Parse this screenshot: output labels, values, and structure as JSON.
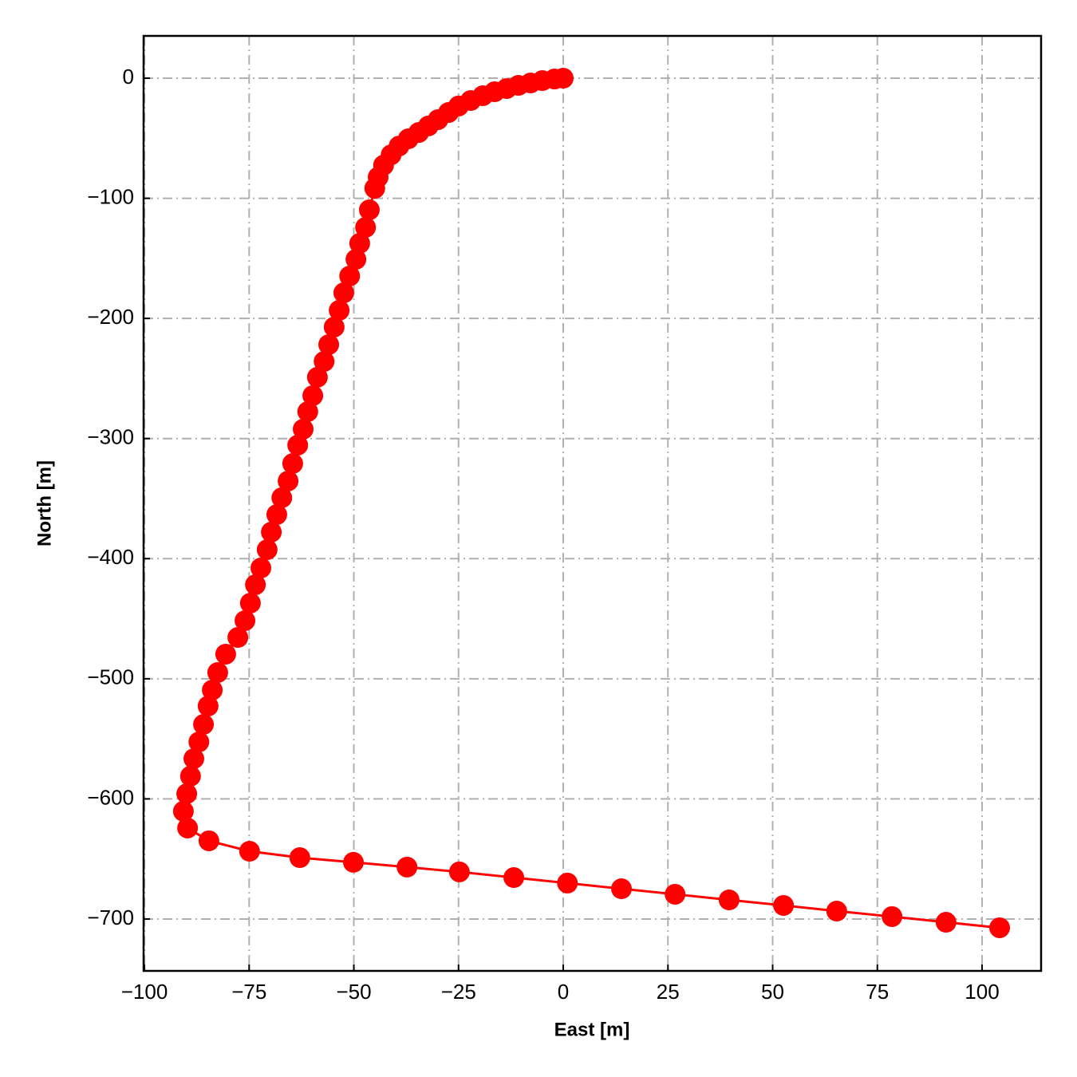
{
  "chart_data": {
    "type": "line",
    "x_label": "East [m]",
    "y_label": "North [m]",
    "x": [
      0,
      -2.1,
      -5,
      -7.8,
      -10.7,
      -13.5,
      -16.4,
      -19.2,
      -22.1,
      -25,
      -27.4,
      -29.9,
      -32.2,
      -34.5,
      -37,
      -39.2,
      -41.1,
      -42.9,
      -44.2,
      -45,
      -46.3,
      -47.2,
      -48.6,
      -49.5,
      -51,
      -52.4,
      -53.5,
      -54.7,
      -56,
      -57.1,
      -58.7,
      -59.8,
      -61,
      -62.1,
      -63.4,
      -64.6,
      -65.7,
      -67.2,
      -68.4,
      -69.7,
      -70.7,
      -72.2,
      -73.5,
      -74.7,
      -76,
      -77.7,
      -80.6,
      -82.5,
      -83.8,
      -84.8,
      -85.9,
      -87,
      -88.2,
      -89,
      -89.9,
      -90.7,
      -89.7,
      -84.6,
      -74.9,
      -62.9,
      -50.1,
      -37.3,
      -24.8,
      -11.8,
      1,
      13.9,
      26.7,
      39.6,
      52.6,
      65.3,
      78.5,
      91.4,
      104.2
    ],
    "series": [
      {
        "color": "#ff0000",
        "values": [
          0,
          -0.7,
          -2,
          -4,
          -6,
          -8.6,
          -11.3,
          -14.6,
          -18.6,
          -23.2,
          -28.6,
          -34.5,
          -39.8,
          -45.2,
          -50.5,
          -56.5,
          -63.8,
          -72.4,
          -82.4,
          -91.7,
          -109.6,
          -124.2,
          -137.5,
          -150.8,
          -164.7,
          -178.7,
          -193.3,
          -207.2,
          -221.8,
          -235.8,
          -249,
          -264.3,
          -277.6,
          -292.2,
          -305.5,
          -320.8,
          -335.4,
          -349.3,
          -363.3,
          -377.9,
          -392.5,
          -407.8,
          -421.7,
          -437,
          -451.6,
          -465.6,
          -479.5,
          -494.8,
          -509.4,
          -522.7,
          -538,
          -552.6,
          -566.5,
          -581.1,
          -595.7,
          -610.3,
          -624.3,
          -634.9,
          -643.6,
          -648.9,
          -652.8,
          -656.8,
          -660.8,
          -665.5,
          -670.1,
          -674.8,
          -679.4,
          -684.1,
          -688.7,
          -693.4,
          -698,
          -702.7,
          -707.3
        ]
      }
    ],
    "xlim": [
      -100.2,
      114.1
    ],
    "ylim": [
      -743.2,
      35.2
    ],
    "xticks": [
      {
        "value": -100,
        "label": "−100"
      },
      {
        "value": -75,
        "label": "−75"
      },
      {
        "value": -50,
        "label": "−50"
      },
      {
        "value": -25,
        "label": "−25"
      },
      0,
      25,
      50,
      75,
      100
    ],
    "yticks": [
      0,
      {
        "value": -100,
        "label": "−100"
      },
      {
        "value": -200,
        "label": "−200"
      },
      {
        "value": -300,
        "label": "−300"
      },
      {
        "value": -400,
        "label": "−400"
      },
      {
        "value": -500,
        "label": "−500"
      },
      {
        "value": -600,
        "label": "−600"
      },
      {
        "value": -700,
        "label": "−700"
      }
    ],
    "grid": true
  }
}
